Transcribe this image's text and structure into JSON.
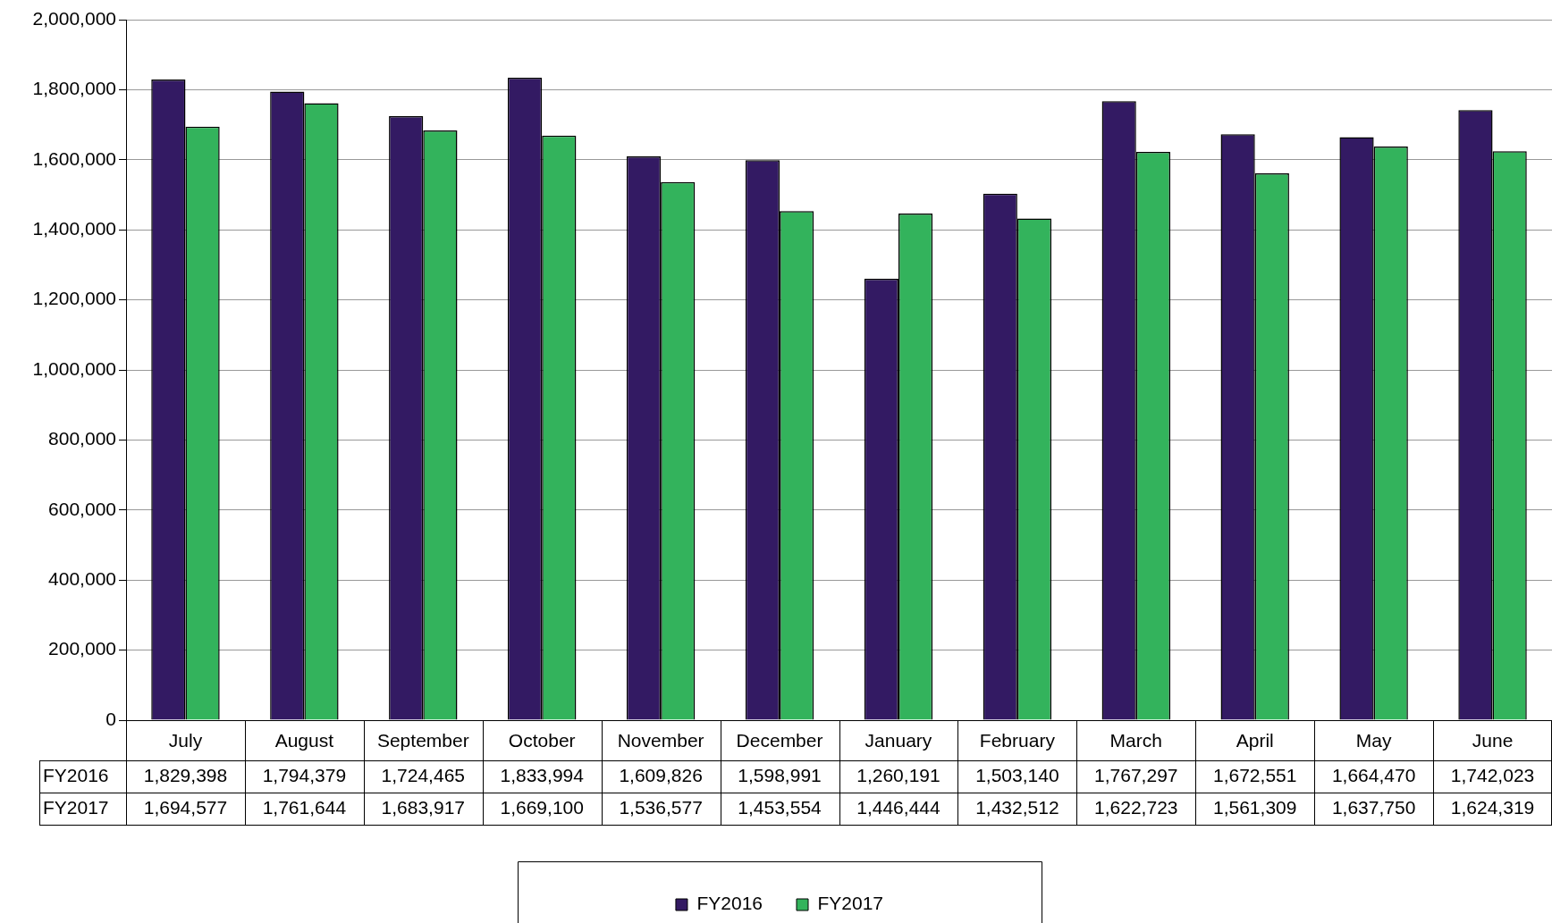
{
  "chart_data": {
    "type": "bar",
    "categories": [
      "July",
      "August",
      "September",
      "October",
      "November",
      "December",
      "January",
      "February",
      "March",
      "April",
      "May",
      "June"
    ],
    "series": [
      {
        "name": "FY2016",
        "color": "#331a63",
        "values": [
          1829398,
          1794379,
          1724465,
          1833994,
          1609826,
          1598991,
          1260191,
          1503140,
          1767297,
          1672551,
          1664470,
          1742023
        ],
        "value_labels": [
          "1,829,398",
          "1,794,379",
          "1,724,465",
          "1,833,994",
          "1,609,826",
          "1,598,991",
          "1,260,191",
          "1,503,140",
          "1,767,297",
          "1,672,551",
          "1,664,470",
          "1,742,023"
        ]
      },
      {
        "name": "FY2017",
        "color": "#33b35c",
        "values": [
          1694577,
          1761644,
          1683917,
          1669100,
          1536577,
          1453554,
          1446444,
          1432512,
          1622723,
          1561309,
          1637750,
          1624319
        ],
        "value_labels": [
          "1,694,577",
          "1,761,644",
          "1,683,917",
          "1,669,100",
          "1,536,577",
          "1,453,554",
          "1,446,444",
          "1,432,512",
          "1,622,723",
          "1,561,309",
          "1,637,750",
          "1,624,319"
        ]
      }
    ],
    "ylim": [
      0,
      2000000
    ],
    "yticks": [
      {
        "value": 0,
        "label": "0"
      },
      {
        "value": 200000,
        "label": "200,000"
      },
      {
        "value": 400000,
        "label": "400,000"
      },
      {
        "value": 600000,
        "label": "600,000"
      },
      {
        "value": 800000,
        "label": "800,000"
      },
      {
        "value": 1000000,
        "label": "1,000,000"
      },
      {
        "value": 1200000,
        "label": "1,200,000"
      },
      {
        "value": 1400000,
        "label": "1,400,000"
      },
      {
        "value": 1600000,
        "label": "1,600,000"
      },
      {
        "value": 1800000,
        "label": "1,800,000"
      },
      {
        "value": 2000000,
        "label": "2,000,000"
      }
    ],
    "grid": "y",
    "legend": "bottom"
  }
}
